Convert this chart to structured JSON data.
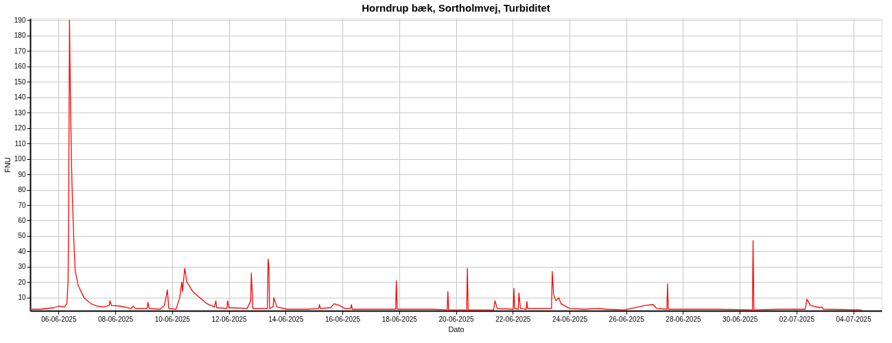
{
  "chart_data": {
    "type": "line",
    "title": "Horndrup bæk, Sortholmvej, Turbiditet",
    "xlabel": "Dato",
    "ylabel": "FNU",
    "x": [
      "2025-06-05T00:00",
      "2025-06-05T09:00",
      "2025-06-05T20:00",
      "2025-06-06T00:00",
      "2025-06-06T05:00",
      "2025-06-06T07:00",
      "2025-06-06T08:00",
      "2025-06-06T08:30",
      "2025-06-06T09:15",
      "2025-06-06T10:00",
      "2025-06-06T11:00",
      "2025-06-06T11:40",
      "2025-06-06T13:00",
      "2025-06-06T14:00",
      "2025-06-06T16:30",
      "2025-06-06T21:30",
      "2025-06-07T03:30",
      "2025-06-07T08:30",
      "2025-06-07T14:30",
      "2025-06-07T19:00",
      "2025-06-07T19:30",
      "2025-06-07T20:45",
      "2025-06-08T04:00",
      "2025-06-08T13:20",
      "2025-06-08T15:00",
      "2025-06-08T17:00",
      "2025-06-09T02:50",
      "2025-06-09T03:30",
      "2025-06-09T04:40",
      "2025-06-09T13:50",
      "2025-06-09T17:30",
      "2025-06-09T20:00",
      "2025-06-09T21:10",
      "2025-06-10T03:20",
      "2025-06-10T06:25",
      "2025-06-10T08:10",
      "2025-06-10T08:50",
      "2025-06-10T10:40",
      "2025-06-10T12:30",
      "2025-06-10T14:20",
      "2025-06-10T17:25",
      "2025-06-10T23:30",
      "2025-06-11T05:40",
      "2025-06-11T11:50",
      "2025-06-11T13:00",
      "2025-06-11T13:40",
      "2025-06-11T22:20",
      "2025-06-11T22:55",
      "2025-06-12T00:05",
      "2025-06-12T15:25",
      "2025-06-12T18:25",
      "2025-06-12T19:00",
      "2025-06-12T20:15",
      "2025-06-13T08:30",
      "2025-06-13T09:10",
      "2025-06-13T09:50",
      "2025-06-13T10:25",
      "2025-06-13T13:25",
      "2025-06-13T14:00",
      "2025-06-13T16:30",
      "2025-06-14T01:05",
      "2025-06-14T19:30",
      "2025-06-15T04:00",
      "2025-06-15T04:40",
      "2025-06-15T05:20",
      "2025-06-15T13:55",
      "2025-06-15T17:00",
      "2025-06-15T21:15",
      "2025-06-16T02:10",
      "2025-06-16T07:00",
      "2025-06-16T07:40",
      "2025-06-16T08:15",
      "2025-06-17T21:00",
      "2025-06-17T21:40",
      "2025-06-17T22:15",
      "2025-06-19T03:40",
      "2025-06-19T16:35",
      "2025-06-19T17:10",
      "2025-06-19T17:50",
      "2025-06-20T09:05",
      "2025-06-20T09:40",
      "2025-06-20T10:20",
      "2025-06-21T07:50",
      "2025-06-21T09:00",
      "2025-06-21T10:50",
      "2025-06-22T00:25",
      "2025-06-22T01:00",
      "2025-06-22T01:35",
      "2025-06-22T04:40",
      "2025-06-22T05:15",
      "2025-06-22T06:30",
      "2025-06-22T11:25",
      "2025-06-22T12:00",
      "2025-06-22T12:35",
      "2025-06-22T23:35",
      "2025-06-23T08:50",
      "2025-06-23T09:25",
      "2025-06-23T10:35",
      "2025-06-23T12:30",
      "2025-06-23T14:55",
      "2025-06-23T16:50",
      "2025-06-24T00:10",
      "2025-06-24T12:25",
      "2025-06-25T00:40",
      "2025-06-25T06:50",
      "2025-06-25T22:05",
      "2025-06-26T16:30",
      "2025-06-26T22:40",
      "2025-06-27T01:45",
      "2025-06-27T10:20",
      "2025-06-27T10:55",
      "2025-06-27T11:30",
      "2025-06-28T14:30",
      "2025-06-29T02:50",
      "2025-06-30T10:40",
      "2025-06-30T11:15",
      "2025-06-30T11:55",
      "2025-07-01T10:00",
      "2025-07-02T07:25",
      "2025-07-02T08:40",
      "2025-07-02T11:45",
      "2025-07-02T19:40",
      "2025-07-02T21:00",
      "2025-07-02T22:40",
      "2025-07-04T07:05"
    ],
    "series": [
      {
        "color": "#ff0000",
        "values": [
          2.5,
          2.5,
          3.5,
          4.5,
          4,
          6,
          20,
          60,
          190,
          140,
          95,
          75,
          45,
          28,
          18,
          10,
          6,
          4.5,
          4,
          5,
          8,
          5,
          4.5,
          3,
          4.5,
          3,
          3,
          7,
          3,
          2.5,
          5,
          15,
          3,
          2.5,
          10,
          20,
          14,
          29,
          20,
          18,
          14,
          10,
          6,
          4,
          8,
          3.5,
          3,
          8,
          3.5,
          3,
          8,
          26,
          3,
          3,
          35,
          30,
          3,
          4,
          10,
          4,
          2.5,
          2.5,
          3,
          5.5,
          3,
          3.5,
          6,
          5,
          3,
          3,
          5.5,
          2.5,
          2.5,
          21,
          2.5,
          2.5,
          2,
          14,
          2,
          2,
          29,
          2,
          2,
          8,
          3,
          2.5,
          16,
          3,
          2.5,
          13,
          3,
          2.5,
          7.5,
          3,
          3,
          3,
          27,
          12,
          8,
          10,
          6,
          3,
          2.5,
          3,
          2.5,
          2,
          5,
          5.5,
          3,
          2.5,
          19,
          2.5,
          2.5,
          2.5,
          2,
          47,
          2,
          2.5,
          2.5,
          9,
          5,
          3.5,
          4,
          2.5,
          2
        ]
      }
    ],
    "xlim": [
      "2025-06-05T00:00",
      "2025-07-05T00:00"
    ],
    "xticks": [
      {
        "value": "2025-06-06",
        "label": "06-06-2025"
      },
      {
        "value": "2025-06-08",
        "label": "08-06-2025"
      },
      {
        "value": "2025-06-10",
        "label": "10-06-2025"
      },
      {
        "value": "2025-06-12",
        "label": "12-06-2025"
      },
      {
        "value": "2025-06-14",
        "label": "14-06-2025"
      },
      {
        "value": "2025-06-16",
        "label": "16-06-2025"
      },
      {
        "value": "2025-06-18",
        "label": "18-06-2025"
      },
      {
        "value": "2025-06-20",
        "label": "20-06-2025"
      },
      {
        "value": "2025-06-22",
        "label": "22-06-2025"
      },
      {
        "value": "2025-06-24",
        "label": "24-06-2025"
      },
      {
        "value": "2025-06-26",
        "label": "26-06-2025"
      },
      {
        "value": "2025-06-28",
        "label": "28-06-2025"
      },
      {
        "value": "2025-06-30",
        "label": "30-06-2025"
      },
      {
        "value": "2025-07-02",
        "label": "02-07-2025"
      },
      {
        "value": "2025-07-04",
        "label": "04-07-2025"
      }
    ],
    "ylim": [
      1.5,
      191
    ],
    "yticks": [
      10,
      20,
      30,
      40,
      50,
      60,
      70,
      80,
      90,
      100,
      110,
      120,
      130,
      140,
      150,
      160,
      170,
      180,
      190
    ],
    "grid": true,
    "marker": "none",
    "line_style": "solid"
  }
}
